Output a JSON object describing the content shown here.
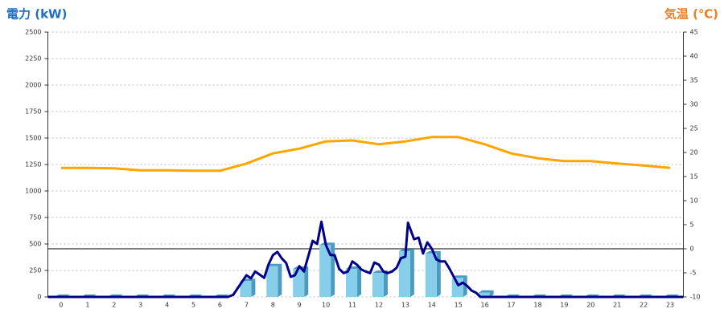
{
  "chart_data": {
    "type": "bar",
    "title_left": "電力 (kW)",
    "title_right": "気温 (℃)",
    "categories": [
      "0",
      "1",
      "2",
      "3",
      "4",
      "5",
      "6",
      "7",
      "8",
      "9",
      "10",
      "11",
      "12",
      "13",
      "14",
      "15",
      "16",
      "17",
      "18",
      "19",
      "20",
      "21",
      "22",
      "23"
    ],
    "xlim": [
      -0.5,
      23.5
    ],
    "ylim": [
      0,
      2500
    ],
    "yticks": [
      0,
      250,
      500,
      750,
      1000,
      1250,
      1500,
      1750,
      2000,
      2250,
      2500
    ],
    "y2lim": [
      -10,
      45
    ],
    "y2ticks": [
      -10,
      -5,
      0,
      5,
      10,
      15,
      20,
      25,
      30,
      35,
      40,
      45
    ],
    "grid": true,
    "zero_line": "y2",
    "series": [
      {
        "type": "bar",
        "color": "#87ceeb",
        "side_color": "#4a9bbf",
        "values": [
          0,
          0,
          0,
          0,
          0,
          0,
          0,
          150,
          290,
          265,
          490,
          265,
          225,
          430,
          410,
          180,
          40,
          0,
          0,
          0,
          0,
          0,
          0,
          0
        ]
      },
      {
        "type": "line",
        "color": "#00008b",
        "x": [
          -0.5,
          6.3,
          6.5,
          7.0,
          7.17,
          7.33,
          7.5,
          7.67,
          7.83,
          8.0,
          8.17,
          8.33,
          8.5,
          8.67,
          8.83,
          9.0,
          9.17,
          9.33,
          9.5,
          9.67,
          9.83,
          10.0,
          10.17,
          10.33,
          10.5,
          10.67,
          10.83,
          11.0,
          11.17,
          11.33,
          11.5,
          11.67,
          11.83,
          12.0,
          12.17,
          12.33,
          12.5,
          12.67,
          12.83,
          13.0,
          13.1,
          13.33,
          13.5,
          13.67,
          13.83,
          14.0,
          14.17,
          14.33,
          14.5,
          14.67,
          14.83,
          15.0,
          15.17,
          15.33,
          15.5,
          15.67,
          15.83,
          23.5
        ],
        "values": [
          0,
          0,
          20,
          205,
          175,
          240,
          210,
          180,
          305,
          395,
          425,
          365,
          320,
          190,
          205,
          290,
          240,
          380,
          530,
          500,
          710,
          490,
          395,
          395,
          265,
          225,
          240,
          335,
          305,
          260,
          240,
          225,
          325,
          305,
          240,
          225,
          240,
          275,
          365,
          380,
          700,
          545,
          560,
          410,
          515,
          455,
          355,
          335,
          335,
          265,
          190,
          110,
          135,
          105,
          60,
          40,
          0,
          0
        ]
      },
      {
        "type": "line",
        "axis": "y2",
        "color": "#ffa500",
        "x": [
          0,
          1,
          2,
          3,
          4,
          5,
          6,
          7,
          8,
          9,
          10,
          11,
          12,
          13,
          14,
          15,
          16,
          17,
          18,
          19,
          20,
          21,
          22,
          23
        ],
        "values": [
          16.8,
          16.8,
          16.7,
          16.3,
          16.3,
          16.2,
          16.2,
          17.7,
          19.8,
          20.8,
          22.3,
          22.5,
          21.7,
          22.3,
          23.2,
          23.2,
          21.7,
          19.8,
          18.8,
          18.2,
          18.2,
          17.7,
          17.3,
          16.8
        ]
      }
    ]
  }
}
